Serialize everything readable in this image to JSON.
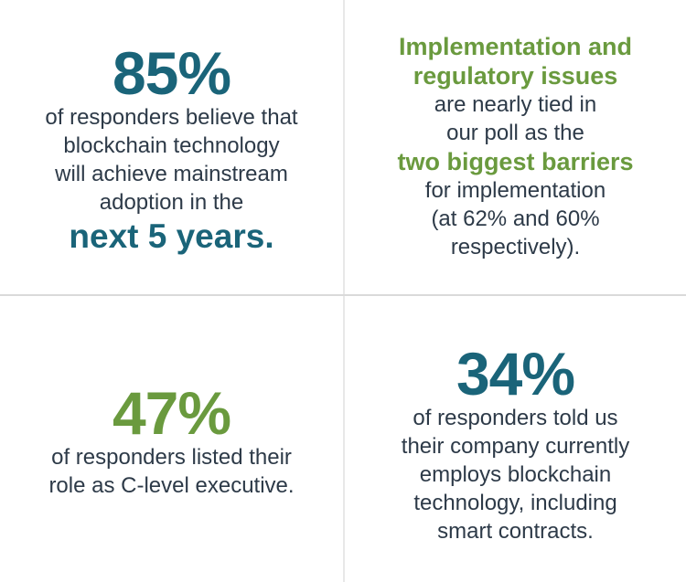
{
  "colors": {
    "teal": "#1a6479",
    "green": "#6a9a3e",
    "body_text": "#2d3a48",
    "divider": "#e0e0e0"
  },
  "stats": {
    "top_left": {
      "headline": "85%",
      "body_lines": [
        "of responders believe that",
        "blockchain technology",
        "will achieve mainstream",
        "adoption in the"
      ],
      "emphasis": "next 5 years."
    },
    "top_right": {
      "headline_lines": [
        "Implementation and",
        "regulatory issues"
      ],
      "body_lines_a": [
        "are nearly tied in",
        "our poll as the"
      ],
      "emphasis": "two biggest barriers",
      "body_lines_b": [
        "for implementation",
        "(at 62% and 60%",
        "respectively)."
      ]
    },
    "bottom_left": {
      "headline": "47%",
      "body_lines": [
        "of responders listed their",
        "role as C-level executive."
      ]
    },
    "bottom_right": {
      "headline": "34%",
      "body_lines": [
        "of responders told us",
        "their company currently",
        "employs blockchain",
        "technology, including",
        "smart contracts."
      ]
    }
  }
}
